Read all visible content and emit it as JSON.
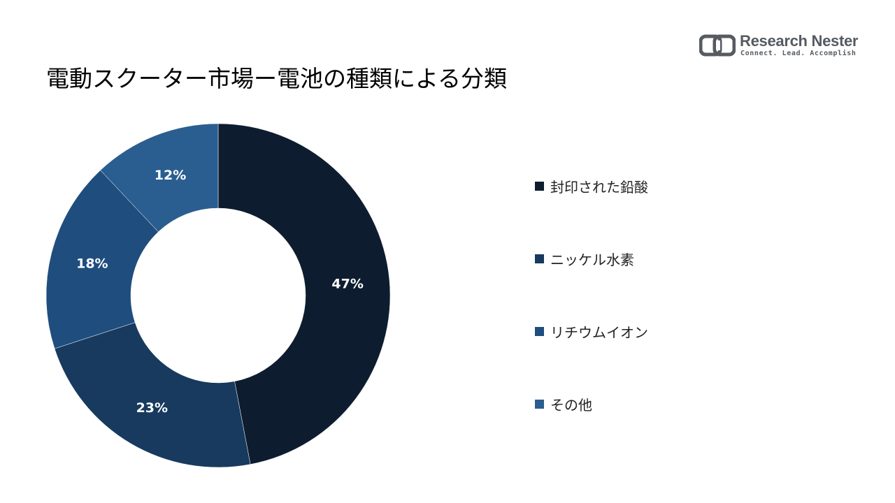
{
  "header": {
    "title": "電動スクーター市場ー電池の種類による分類"
  },
  "logo": {
    "name_bold": "Research",
    "name_light": "Nester",
    "tagline": "Connect. Lead. Accomplish",
    "color": "#555b61"
  },
  "chart_data": {
    "type": "pie",
    "variant": "donut",
    "labels": [
      "封印された鉛酸",
      "ニッケル水素",
      "リチウムイオン",
      "その他"
    ],
    "values": [
      47,
      23,
      18,
      12
    ],
    "value_labels": [
      "47%",
      "23%",
      "18%",
      "12%"
    ],
    "colors": [
      "#0d1d2f",
      "#173a5e",
      "#1f4d7e",
      "#2a5e90"
    ],
    "legend_position": "right"
  }
}
